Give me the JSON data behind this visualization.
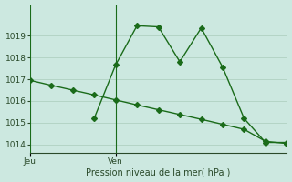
{
  "smooth_x": [
    0,
    1,
    2,
    3,
    4,
    5,
    6,
    7,
    8,
    9,
    10,
    11,
    12
  ],
  "smooth_y": [
    1016.95,
    1016.72,
    1016.5,
    1016.28,
    1016.05,
    1015.82,
    1015.6,
    1015.38,
    1015.16,
    1014.93,
    1014.7,
    1014.15,
    1014.05
  ],
  "volatile_x": [
    3,
    4,
    5,
    6,
    7,
    8,
    9,
    10,
    11,
    12
  ],
  "volatile_y": [
    1015.2,
    1017.65,
    1019.45,
    1019.4,
    1017.8,
    1019.35,
    1017.55,
    1015.2,
    1014.1,
    1014.1
  ],
  "xlabel": "Pression niveau de la mer( hPa )",
  "ylim": [
    1013.6,
    1020.4
  ],
  "yticks": [
    1014,
    1015,
    1016,
    1017,
    1018,
    1019
  ],
  "xlim": [
    0,
    12
  ],
  "jeu_x": 0,
  "ven_x": 4,
  "xtick_positions": [
    0,
    4
  ],
  "xtick_labels": [
    "Jeu",
    "Ven"
  ],
  "vline_positions": [
    0,
    4
  ],
  "line_color": "#1a6b1a",
  "bg_color": "#cce8e0",
  "grid_color": "#aaccbb",
  "markersize": 3,
  "linewidth": 1.0
}
